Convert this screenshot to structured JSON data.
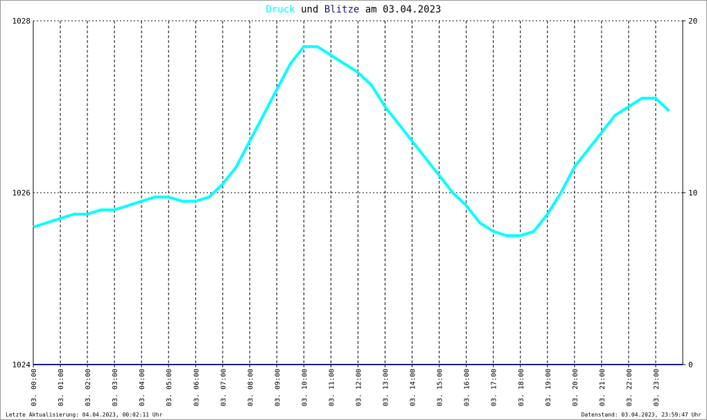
{
  "chart_data": {
    "type": "line",
    "title_connector": "und",
    "title_date": "am 03.04.2023",
    "xlim": [
      0,
      24
    ],
    "xticks": [
      {
        "value": 0,
        "label": "03. 00:00"
      },
      {
        "value": 1,
        "label": "03. 01:00"
      },
      {
        "value": 2,
        "label": "03. 02:00"
      },
      {
        "value": 3,
        "label": "03. 03:00"
      },
      {
        "value": 4,
        "label": "03. 04:00"
      },
      {
        "value": 5,
        "label": "03. 05:00"
      },
      {
        "value": 6,
        "label": "03. 06:00"
      },
      {
        "value": 7,
        "label": "03. 07:00"
      },
      {
        "value": 8,
        "label": "03. 08:00"
      },
      {
        "value": 9,
        "label": "03. 09:00"
      },
      {
        "value": 10,
        "label": "03. 10:00"
      },
      {
        "value": 11,
        "label": "03. 11:00"
      },
      {
        "value": 12,
        "label": "03. 12:00"
      },
      {
        "value": 13,
        "label": "03. 13:00"
      },
      {
        "value": 14,
        "label": "03. 14:00"
      },
      {
        "value": 15,
        "label": "03. 15:00"
      },
      {
        "value": 16,
        "label": "03. 16:00"
      },
      {
        "value": 17,
        "label": "03. 17:00"
      },
      {
        "value": 18,
        "label": "03. 18:00"
      },
      {
        "value": 19,
        "label": "03. 19:00"
      },
      {
        "value": 20,
        "label": "03. 20:00"
      },
      {
        "value": 21,
        "label": "03. 21:00"
      },
      {
        "value": 22,
        "label": "03. 22:00"
      },
      {
        "value": 23,
        "label": "03. 23:00"
      }
    ],
    "ylim": [
      1024,
      1028
    ],
    "yticks": [
      1024,
      1026,
      1028
    ],
    "y2lim": [
      0,
      20
    ],
    "y2ticks": [
      0,
      10,
      20
    ],
    "grid": true,
    "series": [
      {
        "name": "Druck",
        "color": "#00ffff",
        "x": [
          0,
          0.5,
          1,
          1.5,
          2,
          2.5,
          3,
          3.5,
          4,
          4.5,
          5,
          5.5,
          6,
          6.5,
          7,
          7.5,
          8,
          8.5,
          9,
          9.5,
          10,
          10.5,
          11,
          11.5,
          12,
          12.5,
          13,
          13.5,
          14,
          14.5,
          15,
          15.5,
          16,
          16.5,
          17,
          17.5,
          18,
          18.5,
          19,
          19.5,
          20,
          20.5,
          21,
          21.5,
          22,
          22.5,
          23,
          23.5
        ],
        "values": [
          1025.6,
          1025.65,
          1025.7,
          1025.75,
          1025.75,
          1025.8,
          1025.8,
          1025.85,
          1025.9,
          1025.95,
          1025.95,
          1025.9,
          1025.9,
          1025.95,
          1026.1,
          1026.3,
          1026.6,
          1026.9,
          1027.2,
          1027.5,
          1027.7,
          1027.7,
          1027.6,
          1027.5,
          1027.4,
          1027.25,
          1027.0,
          1026.8,
          1026.6,
          1026.4,
          1026.2,
          1026.0,
          1025.85,
          1025.65,
          1025.55,
          1025.5,
          1025.5,
          1025.55,
          1025.75,
          1026.0,
          1026.3,
          1026.5,
          1026.7,
          1026.9,
          1027.0,
          1027.1,
          1027.1,
          1026.95
        ]
      },
      {
        "name": "Blitze",
        "color": "#1a1a80",
        "axis": "y2",
        "x": [
          0,
          24
        ],
        "values": [
          0,
          0
        ]
      }
    ],
    "footer_left": "Letzte Aktualisierung: 04.04.2023, 00:02:11 Uhr",
    "footer_right": "Datenstand: 03.04.2023, 23:59:47 Uhr"
  }
}
